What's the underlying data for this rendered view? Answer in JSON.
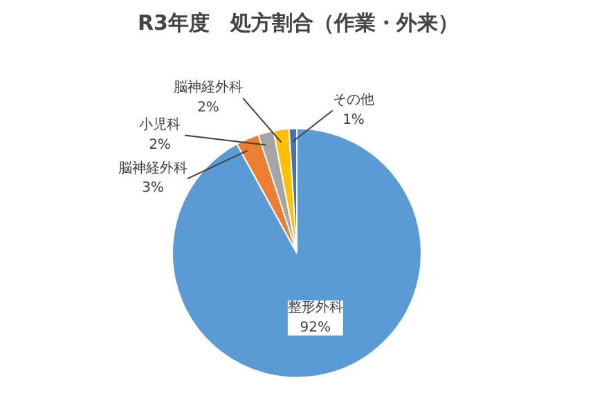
{
  "chart_data": {
    "type": "pie",
    "title": "R3年度　処方割合（作業・外来）",
    "categories": [
      "整形外科",
      "脳神経外科",
      "小児科",
      "脳神経外科",
      "その他"
    ],
    "values": [
      92,
      3,
      2,
      2,
      1
    ],
    "colors": [
      "#5b9bd5",
      "#ed7d31",
      "#a5a5a5",
      "#ffc000",
      "#4472c4"
    ],
    "value_labels": [
      "92%",
      "3%",
      "2%",
      "2%",
      "1%"
    ]
  }
}
